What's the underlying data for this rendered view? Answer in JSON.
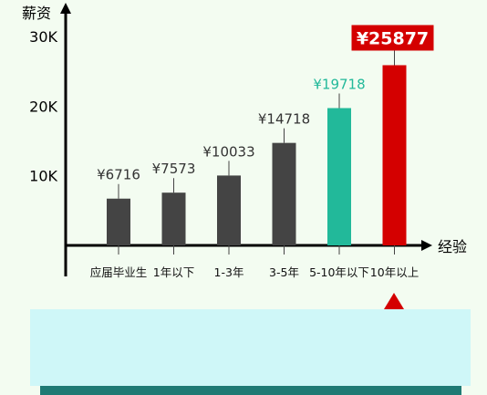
{
  "chart_data": {
    "type": "bar",
    "ylabel": "薪资",
    "xlabel": "经验",
    "ylim": [
      0,
      30000
    ],
    "y_ticks": [
      {
        "value": 10000,
        "label": "10K"
      },
      {
        "value": 20000,
        "label": "20K"
      },
      {
        "value": 30000,
        "label": "30K"
      }
    ],
    "categories": [
      "应届毕业生",
      "1年以下",
      "1-3年",
      "3-5年",
      "5-10年以下",
      "10年以上"
    ],
    "values": [
      6716,
      7573,
      10033,
      14718,
      19718,
      25877
    ],
    "value_labels": [
      "¥6716",
      "¥7573",
      "¥10033",
      "¥14718",
      "¥19718",
      "¥25877"
    ],
    "colors": {
      "default_bar": "#444444",
      "highlight_teal": "#22b99a",
      "highlight_red": "#d40000",
      "axis": "#000000",
      "panel": "#cff7f8",
      "panel_bar": "#1f7a74"
    },
    "bar_styles": [
      "default",
      "default",
      "default",
      "default",
      "teal",
      "red"
    ]
  }
}
